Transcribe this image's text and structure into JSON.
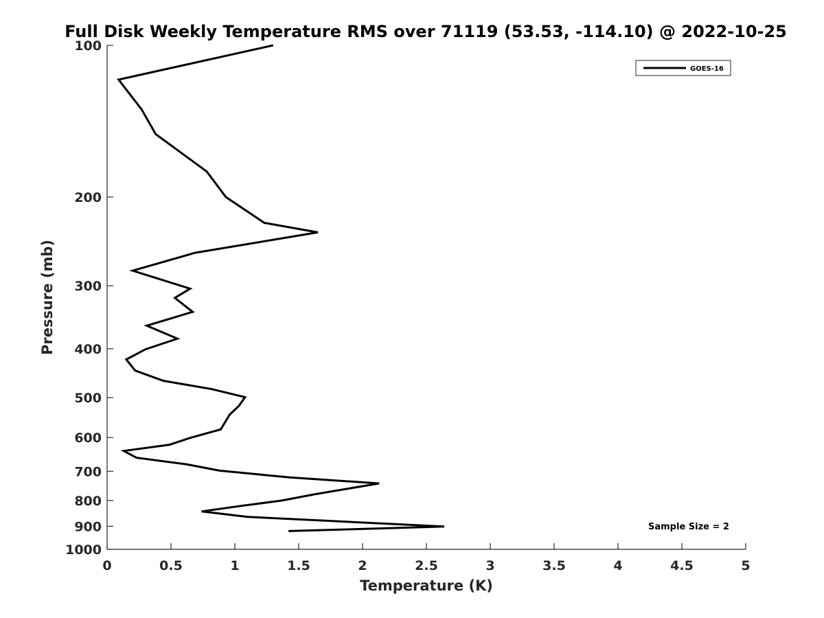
{
  "chart_data": {
    "type": "line",
    "title": "Full Disk Weekly Temperature RMS over 71119 (53.53, -114.10) @ 2022-10-25",
    "xlabel": "Temperature (K)",
    "ylabel": "Pressure (mb)",
    "xlim": [
      0,
      5
    ],
    "ylim": [
      100,
      1000
    ],
    "y_scale": "log",
    "y_reversed": true,
    "xticks": [
      0,
      0.5,
      1,
      1.5,
      2,
      2.5,
      3,
      3.5,
      4,
      4.5,
      5
    ],
    "xtick_labels": [
      "0",
      "0.5",
      "1",
      "1.5",
      "2",
      "2.5",
      "3",
      "3.5",
      "4",
      "4.5",
      "5"
    ],
    "yticks": [
      100,
      200,
      300,
      400,
      500,
      600,
      700,
      800,
      900,
      1000
    ],
    "ytick_labels": [
      "100",
      "200",
      "300",
      "400",
      "500",
      "600",
      "700",
      "800",
      "900",
      "1000"
    ],
    "grid": false,
    "legend_position": "top-right",
    "annotation": "Sample Size = 2",
    "series": [
      {
        "name": "GOES-16",
        "color": "#000000",
        "points": [
          [
            1.3,
            100
          ],
          [
            0.09,
            117
          ],
          [
            0.27,
            134
          ],
          [
            0.38,
            150
          ],
          [
            0.78,
            178
          ],
          [
            0.93,
            200
          ],
          [
            1.23,
            225
          ],
          [
            1.65,
            235
          ],
          [
            0.69,
            258
          ],
          [
            0.2,
            280
          ],
          [
            0.65,
            304
          ],
          [
            0.53,
            317
          ],
          [
            0.67,
            338
          ],
          [
            0.31,
            360
          ],
          [
            0.55,
            382
          ],
          [
            0.3,
            401
          ],
          [
            0.15,
            420
          ],
          [
            0.22,
            442
          ],
          [
            0.44,
            463
          ],
          [
            0.82,
            481
          ],
          [
            1.08,
            499
          ],
          [
            1.03,
            520
          ],
          [
            0.96,
            540
          ],
          [
            0.89,
            578
          ],
          [
            0.65,
            601
          ],
          [
            0.49,
            620
          ],
          [
            0.13,
            638
          ],
          [
            0.23,
            658
          ],
          [
            0.62,
            678
          ],
          [
            0.88,
            698
          ],
          [
            1.43,
            720
          ],
          [
            2.13,
            740
          ],
          [
            1.62,
            778
          ],
          [
            1.37,
            800
          ],
          [
            1.05,
            820
          ],
          [
            0.74,
            841
          ],
          [
            1.1,
            862
          ],
          [
            2.64,
            901
          ],
          [
            1.42,
            920
          ]
        ]
      }
    ]
  }
}
